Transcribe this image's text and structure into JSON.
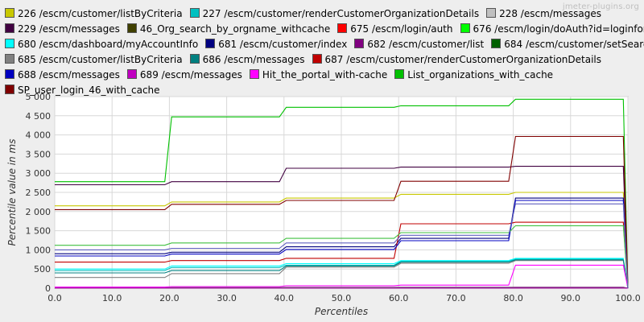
{
  "watermark": "jmeter-plugins.org",
  "chart_data": {
    "type": "line",
    "xlabel": "Percentiles",
    "ylabel": "Percentile value in ms",
    "xlim": [
      0,
      100
    ],
    "ylim": [
      0,
      5000
    ],
    "xticks": [
      "0.0",
      "10.0",
      "20.0",
      "30.0",
      "40.0",
      "50.0",
      "60.0",
      "70.0",
      "80.0",
      "90.0",
      "100.0"
    ],
    "yticks": [
      "0",
      "500",
      "1 000",
      "1 500",
      "2 000",
      "2 500",
      "3 000",
      "3 500",
      "4 000",
      "4 500",
      "5 000"
    ],
    "grid": true,
    "legend_position": "top",
    "series": [
      {
        "name": "226 /escm/customer/listByCriteria",
        "color": "#c8c800",
        "values": [
          2150,
          2250,
          2350,
          2450,
          2500
        ]
      },
      {
        "name": "227 /escm/customer/renderCustomerOrganizationDetails",
        "color": "#00c0c0",
        "values": [
          460,
          540,
          600,
          700,
          760
        ]
      },
      {
        "name": "228 /escm/messages",
        "color": "#c0c0c0",
        "values": [
          20,
          20,
          25,
          30,
          30
        ]
      },
      {
        "name": "229 /escm/messages",
        "color": "#400040",
        "values": [
          2700,
          2780,
          3130,
          3160,
          3180
        ]
      },
      {
        "name": "46_Org_search_by_orgname_withcache",
        "color": "#404000",
        "values": [
          5,
          5,
          5,
          5,
          5
        ]
      },
      {
        "name": "675 /escm/login/auth",
        "color": "#ff0000",
        "values": [
          10,
          10,
          10,
          10,
          10
        ]
      },
      {
        "name": "676 /escm/login/doAuth?id=loginform",
        "color": "#00ff00",
        "values": [
          15,
          15,
          15,
          15,
          15
        ]
      },
      {
        "name": "680 /escm/dashboard/myAccountInfo",
        "color": "#00ffff",
        "values": [
          500,
          580,
          640,
          720,
          780
        ]
      },
      {
        "name": "681 /escm/customer/index",
        "color": "#000080",
        "values": [
          900,
          940,
          1080,
          1300,
          2350
        ]
      },
      {
        "name": "682 /escm/customer/list",
        "color": "#800080",
        "values": [
          10,
          12,
          14,
          16,
          18
        ]
      },
      {
        "name": "684 /escm/customer/setSearchBy",
        "color": "#006000",
        "values": [
          8,
          8,
          8,
          8,
          8
        ]
      },
      {
        "name": "685 /escm/customer/listByCriteria",
        "color": "#808080",
        "values": [
          280,
          380,
          550,
          650,
          720
        ]
      },
      {
        "name": "686 /escm/messages",
        "color": "#008080",
        "values": [
          400,
          460,
          580,
          680,
          740
        ]
      },
      {
        "name": "687 /escm/customer/renderCustomerOrganizationDetails",
        "color": "#c00000",
        "values": [
          680,
          720,
          780,
          1680,
          1720
        ]
      },
      {
        "name": "688 /escm/messages",
        "color": "#0000c0",
        "values": [
          840,
          890,
          1010,
          1240,
          2290
        ]
      },
      {
        "name": "689 /escm/messages",
        "color": "#c000c0",
        "values": [
          5,
          5,
          5,
          5,
          5
        ]
      },
      {
        "name": "Hit_the_portal_with-cache",
        "color": "#ff00ff",
        "values": [
          30,
          40,
          60,
          80,
          600
        ]
      },
      {
        "name": "List_organizations_with_cache",
        "color": "#00c000",
        "values": [
          2780,
          4470,
          4720,
          4760,
          4930
        ]
      },
      {
        "name": "SP_user_login_46_with_cache",
        "color": "#800000",
        "values": [
          2050,
          2190,
          2290,
          2790,
          3960
        ]
      },
      {
        "name": "",
        "color": "#40c040",
        "values": [
          1120,
          1180,
          1300,
          1450,
          1630
        ]
      },
      {
        "name": "",
        "color": "#6060c0",
        "values": [
          1000,
          1040,
          1180,
          1380,
          2200
        ]
      }
    ]
  }
}
